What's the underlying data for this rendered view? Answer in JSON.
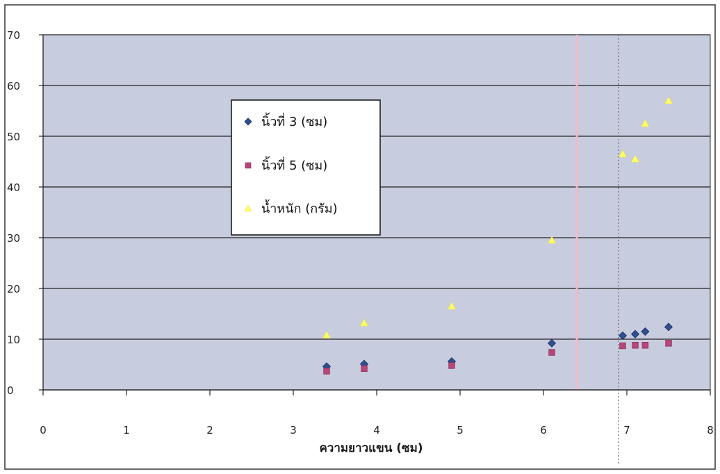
{
  "chart_data": {
    "type": "scatter",
    "xlabel": "ความยาวแขน (ซม)",
    "ylabel": "",
    "xlim": [
      0,
      8
    ],
    "ylim": [
      0,
      70
    ],
    "x_ticks": [
      "0",
      "1",
      "2",
      "3",
      "4",
      "5",
      "6",
      "7",
      "8"
    ],
    "y_ticks": [
      "0",
      "10",
      "20",
      "30",
      "40",
      "50",
      "60",
      "70"
    ],
    "grid": true,
    "legend_position": "upper-center",
    "series": [
      {
        "name": "นิ้วที่ 3 (ซม)",
        "marker": "diamond",
        "color": "#2f4f8f",
        "points": [
          [
            3.4,
            4.6
          ],
          [
            3.85,
            5.1
          ],
          [
            4.9,
            5.6
          ],
          [
            6.1,
            9.2
          ],
          [
            6.95,
            10.7
          ],
          [
            7.1,
            11.0
          ],
          [
            7.22,
            11.5
          ],
          [
            7.5,
            12.4
          ]
        ]
      },
      {
        "name": "นิ้วที่ 5 (ซม)",
        "marker": "square",
        "color": "#b8457a",
        "points": [
          [
            3.4,
            3.7
          ],
          [
            3.85,
            4.2
          ],
          [
            4.9,
            4.8
          ],
          [
            6.1,
            7.4
          ],
          [
            6.95,
            8.7
          ],
          [
            7.1,
            8.8
          ],
          [
            7.22,
            8.8
          ],
          [
            7.5,
            9.2
          ]
        ]
      },
      {
        "name": "น้ำหนัก (กรัม)",
        "marker": "triangle",
        "color": "#ffff66",
        "points": [
          [
            3.4,
            10.8
          ],
          [
            3.85,
            13.2
          ],
          [
            4.9,
            16.5
          ],
          [
            6.1,
            29.5
          ],
          [
            6.95,
            46.5
          ],
          [
            7.1,
            45.5
          ],
          [
            7.22,
            52.5
          ],
          [
            7.5,
            57.0
          ]
        ]
      }
    ],
    "reference_lines": [
      {
        "x": 6.4,
        "color": "#f4b8c8",
        "style": "solid"
      },
      {
        "x": 6.9,
        "color": "#666666",
        "style": "dotted"
      }
    ],
    "plot_background": "#c8ccdf",
    "grid_color": "#222222"
  }
}
